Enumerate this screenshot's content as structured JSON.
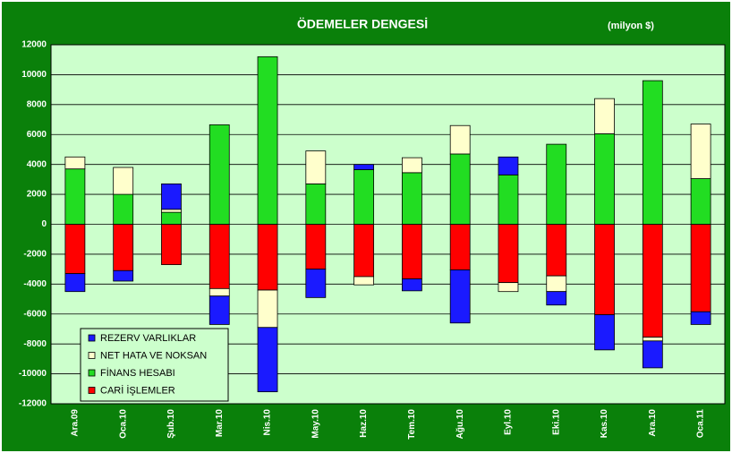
{
  "chart_data": {
    "type": "stacked_bar",
    "title": "ÖDEMELER DENGESİ",
    "subtitle": "(milyon $)",
    "categories": [
      "Ara.09",
      "Oca.10",
      "Şub.10",
      "Mar.10",
      "Nis.10",
      "May.10",
      "Haz.10",
      "Tem.10",
      "Ağu.10",
      "Eyl.10",
      "Eki.10",
      "Kas.10",
      "Ara.10",
      "Oca.11"
    ],
    "series": [
      {
        "name": "REZERV VARLIKLAR",
        "color": "#1a1aff",
        "values": [
          -1200,
          -700,
          1700,
          -1900,
          -4300,
          -1900,
          350,
          -800,
          -3550,
          1200,
          -900,
          -2350,
          -1800,
          -850
        ]
      },
      {
        "name": "NET HATA VE NOKSAN",
        "color": "#ffffcc",
        "values": [
          800,
          1800,
          200,
          -500,
          -2500,
          2200,
          -550,
          1000,
          1900,
          -600,
          -1050,
          2350,
          -250,
          3650
        ]
      },
      {
        "name": "FİNANS HESABI",
        "color": "#22dd22",
        "values": [
          3700,
          2000,
          800,
          6650,
          11200,
          2700,
          3650,
          3450,
          4700,
          3300,
          5350,
          6050,
          9600,
          3050
        ]
      },
      {
        "name": "CARİ İŞLEMLER",
        "color": "#ff0000",
        "values": [
          -3300,
          -3100,
          -2700,
          -4300,
          -4400,
          -3000,
          -3500,
          -3650,
          -3050,
          -3900,
          -3450,
          -6050,
          -7550,
          -5850
        ]
      }
    ],
    "ylim": [
      -12000,
      12000
    ],
    "yticks": [
      -12000,
      -10000,
      -8000,
      -6000,
      -4000,
      -2000,
      0,
      2000,
      4000,
      6000,
      8000,
      10000,
      12000
    ],
    "grid": true,
    "legend": "lower left"
  }
}
